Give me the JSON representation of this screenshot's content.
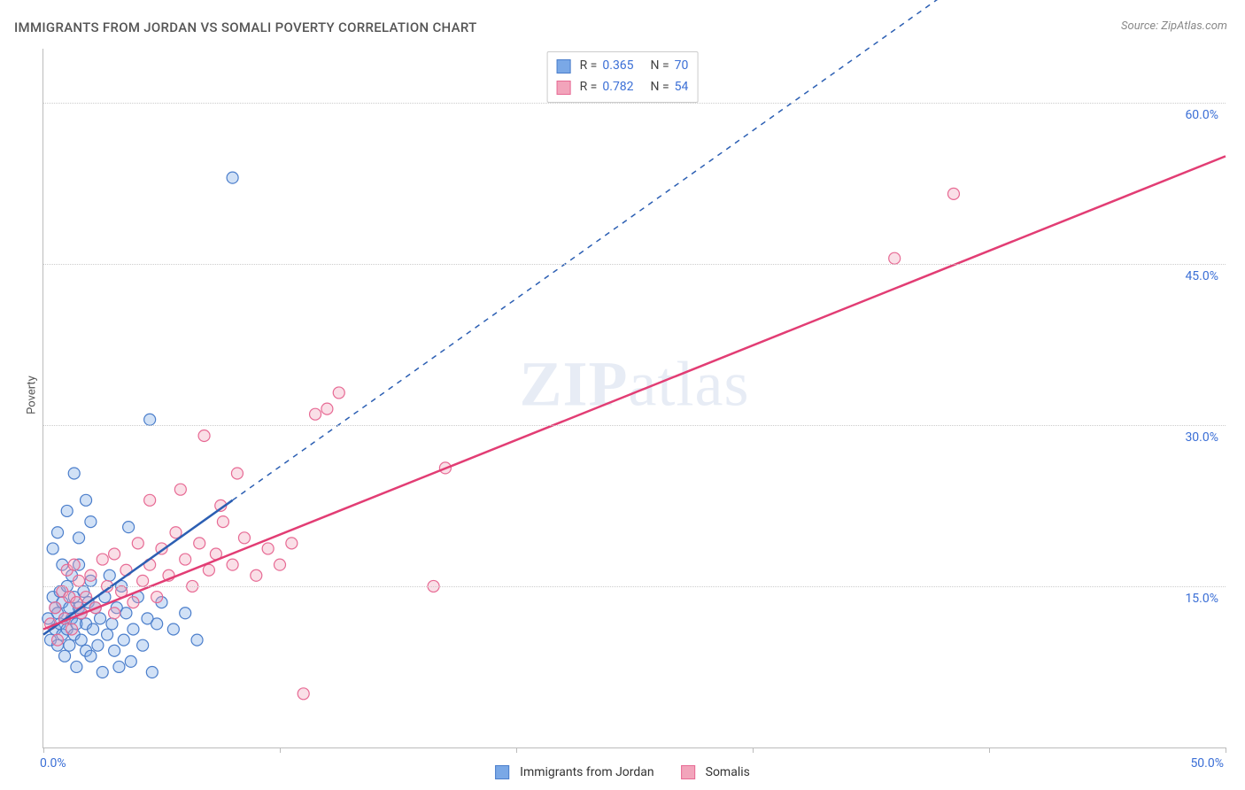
{
  "title": "IMMIGRANTS FROM JORDAN VS SOMALI POVERTY CORRELATION CHART",
  "source_label": "Source: ZipAtlas.com",
  "watermark_zip": "ZIP",
  "watermark_atlas": "atlas",
  "y_axis_label": "Poverty",
  "chart": {
    "type": "scatter",
    "xlim": [
      0,
      50
    ],
    "ylim": [
      0,
      65
    ],
    "y_gridlines": [
      15,
      30,
      45,
      60
    ],
    "y_tick_labels": [
      "15.0%",
      "30.0%",
      "45.0%",
      "60.0%"
    ],
    "x_ticks": [
      0,
      10,
      20,
      30,
      40,
      50
    ],
    "x_start_label": "0.0%",
    "x_end_label": "50.0%",
    "grid_color": "#cccccc",
    "axis_color": "#bbbbbb",
    "background_color": "#ffffff",
    "marker_radius": 6.5,
    "series": [
      {
        "name": "Immigrants from Jordan",
        "color_fill": "#7aa8e6",
        "color_stroke": "#4b7ecb",
        "r_value": "0.365",
        "n_value": "70",
        "trend": {
          "x1": 0,
          "y1": 10.5,
          "x2": 8,
          "y2": 23,
          "extend_to_x": 38,
          "color": "#2c5fb3",
          "dash": true
        },
        "points": [
          [
            0.2,
            12
          ],
          [
            0.3,
            10
          ],
          [
            0.4,
            14
          ],
          [
            0.5,
            11
          ],
          [
            0.5,
            13
          ],
          [
            0.6,
            9.5
          ],
          [
            0.6,
            12.5
          ],
          [
            0.7,
            11.5
          ],
          [
            0.7,
            14.5
          ],
          [
            0.8,
            10.5
          ],
          [
            0.8,
            13.5
          ],
          [
            0.9,
            12
          ],
          [
            0.9,
            8.5
          ],
          [
            1.0,
            11
          ],
          [
            1.0,
            15
          ],
          [
            1.1,
            13
          ],
          [
            1.1,
            9.5
          ],
          [
            1.2,
            12
          ],
          [
            1.2,
            16
          ],
          [
            1.3,
            10.5
          ],
          [
            1.3,
            14
          ],
          [
            1.4,
            11.5
          ],
          [
            1.4,
            7.5
          ],
          [
            1.5,
            13
          ],
          [
            1.5,
            17
          ],
          [
            1.6,
            10
          ],
          [
            1.6,
            12.5
          ],
          [
            1.7,
            14.5
          ],
          [
            1.8,
            9
          ],
          [
            1.8,
            11.5
          ],
          [
            1.9,
            13.5
          ],
          [
            2.0,
            8.5
          ],
          [
            2.0,
            15.5
          ],
          [
            2.1,
            11
          ],
          [
            2.2,
            13
          ],
          [
            2.3,
            9.5
          ],
          [
            2.4,
            12
          ],
          [
            2.5,
            7
          ],
          [
            2.6,
            14
          ],
          [
            2.7,
            10.5
          ],
          [
            2.8,
            16
          ],
          [
            2.9,
            11.5
          ],
          [
            3.0,
            9
          ],
          [
            3.1,
            13
          ],
          [
            3.2,
            7.5
          ],
          [
            3.3,
            15
          ],
          [
            3.4,
            10
          ],
          [
            3.5,
            12.5
          ],
          [
            3.7,
            8
          ],
          [
            3.8,
            11
          ],
          [
            4.0,
            14
          ],
          [
            4.2,
            9.5
          ],
          [
            4.4,
            12
          ],
          [
            4.6,
            7
          ],
          [
            4.8,
            11.5
          ],
          [
            5.0,
            13.5
          ],
          [
            1.0,
            22
          ],
          [
            1.3,
            25.5
          ],
          [
            1.5,
            19.5
          ],
          [
            1.8,
            23
          ],
          [
            2.0,
            21
          ],
          [
            0.4,
            18.5
          ],
          [
            0.6,
            20
          ],
          [
            0.8,
            17
          ],
          [
            5.5,
            11
          ],
          [
            6.0,
            12.5
          ],
          [
            6.5,
            10
          ],
          [
            3.6,
            20.5
          ],
          [
            4.5,
            30.5
          ],
          [
            8.0,
            53
          ]
        ]
      },
      {
        "name": "Somalis",
        "color_fill": "#f2a4bb",
        "color_stroke": "#e76a94",
        "r_value": "0.782",
        "n_value": "54",
        "trend": {
          "x1": 0,
          "y1": 11,
          "x2": 50,
          "y2": 55,
          "color": "#e23d74",
          "dash": false
        },
        "points": [
          [
            0.3,
            11.5
          ],
          [
            0.5,
            13
          ],
          [
            0.6,
            10
          ],
          [
            0.8,
            14.5
          ],
          [
            0.9,
            12
          ],
          [
            1.0,
            16.5
          ],
          [
            1.1,
            14
          ],
          [
            1.2,
            11
          ],
          [
            1.3,
            17
          ],
          [
            1.4,
            13.5
          ],
          [
            1.5,
            15.5
          ],
          [
            1.6,
            12.5
          ],
          [
            1.8,
            14
          ],
          [
            2.0,
            16
          ],
          [
            2.2,
            13
          ],
          [
            2.5,
            17.5
          ],
          [
            2.7,
            15
          ],
          [
            3.0,
            12.5
          ],
          [
            3.0,
            18
          ],
          [
            3.3,
            14.5
          ],
          [
            3.5,
            16.5
          ],
          [
            3.8,
            13.5
          ],
          [
            4.0,
            19
          ],
          [
            4.2,
            15.5
          ],
          [
            4.5,
            17
          ],
          [
            4.8,
            14
          ],
          [
            5.0,
            18.5
          ],
          [
            5.3,
            16
          ],
          [
            5.6,
            20
          ],
          [
            6.0,
            17.5
          ],
          [
            6.3,
            15
          ],
          [
            6.6,
            19
          ],
          [
            7.0,
            16.5
          ],
          [
            7.3,
            18
          ],
          [
            7.6,
            21
          ],
          [
            8.0,
            17
          ],
          [
            8.5,
            19.5
          ],
          [
            9.0,
            16
          ],
          [
            9.5,
            18.5
          ],
          [
            10.0,
            17
          ],
          [
            10.5,
            19
          ],
          [
            4.5,
            23
          ],
          [
            5.8,
            24
          ],
          [
            6.8,
            29
          ],
          [
            7.5,
            22.5
          ],
          [
            8.2,
            25.5
          ],
          [
            11.5,
            31
          ],
          [
            12.0,
            31.5
          ],
          [
            12.5,
            33
          ],
          [
            16.5,
            15
          ],
          [
            17.0,
            26
          ],
          [
            11.0,
            5
          ],
          [
            38.5,
            51.5
          ],
          [
            36.0,
            45.5
          ]
        ]
      }
    ]
  },
  "stats_labels": {
    "r": "R =",
    "n": "N ="
  },
  "colors": {
    "tick_label": "#3b6fd6",
    "title_text": "#555555",
    "source_text": "#888888",
    "watermark": "rgba(120,150,200,0.18)"
  }
}
